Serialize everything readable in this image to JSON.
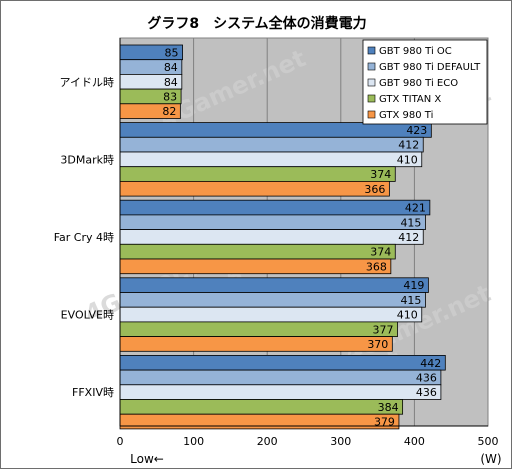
{
  "chart_data": {
    "type": "bar",
    "orientation": "horizontal",
    "title": "グラフ8　システム全体の消費電力",
    "categories": [
      "アイドル時",
      "3DMark時",
      "Far Cry 4時",
      "EVOLVE時",
      "FFXIV時"
    ],
    "series": [
      {
        "name": "GBT 980 Ti OC",
        "color": "#4f81bd",
        "values": [
          85,
          423,
          421,
          419,
          442
        ]
      },
      {
        "name": "GBT 980 Ti DEFAULT",
        "color": "#95b3d7",
        "values": [
          84,
          412,
          415,
          415,
          436
        ]
      },
      {
        "name": "GBT 980 Ti ECO",
        "color": "#dce6f2",
        "values": [
          84,
          410,
          412,
          410,
          436
        ]
      },
      {
        "name": "GTX TITAN X",
        "color": "#9bbb59",
        "values": [
          83,
          374,
          374,
          377,
          384
        ]
      },
      {
        "name": "GTX 980 Ti",
        "color": "#f79646",
        "values": [
          82,
          366,
          368,
          370,
          379
        ]
      }
    ],
    "xlim": [
      0,
      500
    ],
    "xticks": [
      0,
      100,
      200,
      300,
      400,
      500
    ],
    "xlabel_left": "Low←",
    "xlabel_right": "(W)",
    "grid": true,
    "legend_position": "top-right",
    "plot_background": "#c0c0c0",
    "watermark": "4Gamer.net"
  }
}
